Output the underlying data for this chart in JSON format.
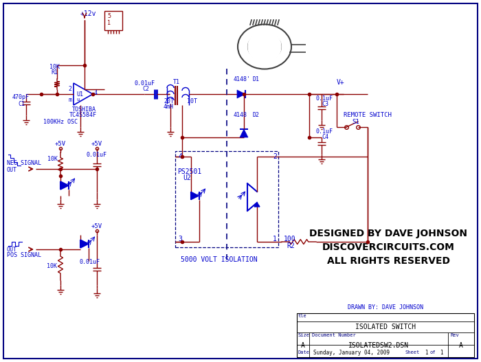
{
  "bg_color": "#ffffff",
  "dc": "#8b0000",
  "bl": "#0000cd",
  "border_color": "#000080",
  "designer_text": [
    "DESIGNED BY DAVE JOHNSON",
    "DISCOVERCIRCUITS.COM",
    "ALL RIGHTS RESERVED"
  ],
  "drawn_by": "DRAWN BY: DAVE JOHNSON",
  "title_block_title": "ISOLATED SWITCH",
  "doc_number": "ISOLATEDSW2.DSN",
  "size_label": "A",
  "rev_label": "A",
  "date_label": "Sunday, January 04, 2009"
}
